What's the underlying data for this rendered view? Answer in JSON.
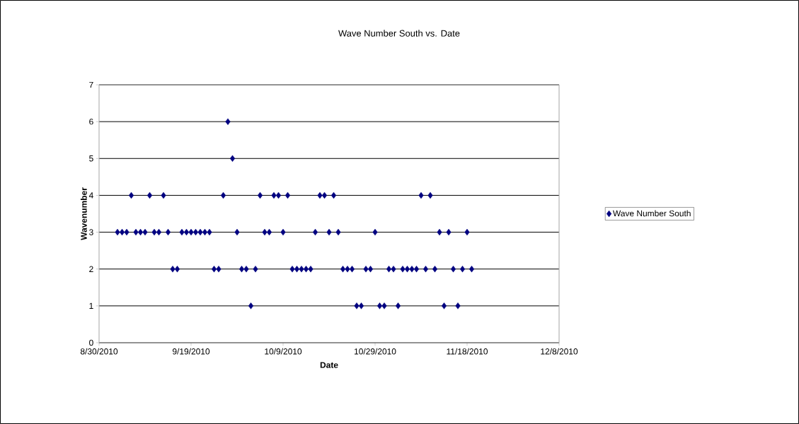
{
  "chart_data": {
    "type": "scatter",
    "title": "Wave Number South vs. Date",
    "xlabel": "Date",
    "ylabel": "Wavenumber",
    "series": [
      {
        "name": "Wave Number South",
        "color": "#000080",
        "x": [
          "2010-09-27",
          "2010-09-28",
          "2010-09-06",
          "2010-09-10",
          "2010-09-13",
          "2010-09-26",
          "2010-10-04",
          "2010-10-07",
          "2010-10-08",
          "2010-10-10",
          "2010-10-17",
          "2010-10-18",
          "2010-10-20",
          "2010-11-08",
          "2010-11-10",
          "2010-09-03",
          "2010-09-04",
          "2010-09-05",
          "2010-09-07",
          "2010-09-08",
          "2010-09-09",
          "2010-09-11",
          "2010-09-12",
          "2010-09-14",
          "2010-09-17",
          "2010-09-18",
          "2010-09-19",
          "2010-09-20",
          "2010-09-21",
          "2010-09-22",
          "2010-09-23",
          "2010-09-29",
          "2010-10-05",
          "2010-10-06",
          "2010-10-09",
          "2010-10-16",
          "2010-10-19",
          "2010-10-21",
          "2010-10-29",
          "2010-11-12",
          "2010-11-14",
          "2010-11-18",
          "2010-09-15",
          "2010-09-16",
          "2010-09-24",
          "2010-09-25",
          "2010-09-30",
          "2010-10-01",
          "2010-10-03",
          "2010-10-11",
          "2010-10-12",
          "2010-10-13",
          "2010-10-14",
          "2010-10-15",
          "2010-10-22",
          "2010-10-23",
          "2010-10-24",
          "2010-10-27",
          "2010-10-28",
          "2010-11-01",
          "2010-11-02",
          "2010-11-04",
          "2010-11-05",
          "2010-11-06",
          "2010-11-07",
          "2010-11-09",
          "2010-11-11",
          "2010-11-15",
          "2010-11-17",
          "2010-11-19",
          "2010-10-02",
          "2010-10-25",
          "2010-10-26",
          "2010-10-30",
          "2010-10-31",
          "2010-11-03",
          "2010-11-13",
          "2010-11-16"
        ],
        "values": [
          6,
          5,
          4,
          4,
          4,
          4,
          4,
          4,
          4,
          4,
          4,
          4,
          4,
          4,
          4,
          3,
          3,
          3,
          3,
          3,
          3,
          3,
          3,
          3,
          3,
          3,
          3,
          3,
          3,
          3,
          3,
          3,
          3,
          3,
          3,
          3,
          3,
          3,
          3,
          3,
          3,
          3,
          2,
          2,
          2,
          2,
          2,
          2,
          2,
          2,
          2,
          2,
          2,
          2,
          2,
          2,
          2,
          2,
          2,
          2,
          2,
          2,
          2,
          2,
          2,
          2,
          2,
          2,
          2,
          2,
          1,
          1,
          1,
          1,
          1,
          1,
          1,
          1
        ]
      }
    ],
    "xlim": [
      "2010-08-30",
      "2010-12-08"
    ],
    "xticks": [
      {
        "value": "2010-08-30",
        "label": "8/30/2010"
      },
      {
        "value": "2010-09-19",
        "label": "9/19/2010"
      },
      {
        "value": "2010-10-09",
        "label": "10/9/2010"
      },
      {
        "value": "2010-10-29",
        "label": "10/29/2010"
      },
      {
        "value": "2010-11-18",
        "label": "11/18/2010"
      },
      {
        "value": "2010-12-08",
        "label": "12/8/2010"
      }
    ],
    "ylim": [
      0,
      7
    ],
    "yticks": [
      0,
      1,
      2,
      3,
      4,
      5,
      6,
      7
    ],
    "grid": "y",
    "legend": "right",
    "marker": "diamond"
  }
}
